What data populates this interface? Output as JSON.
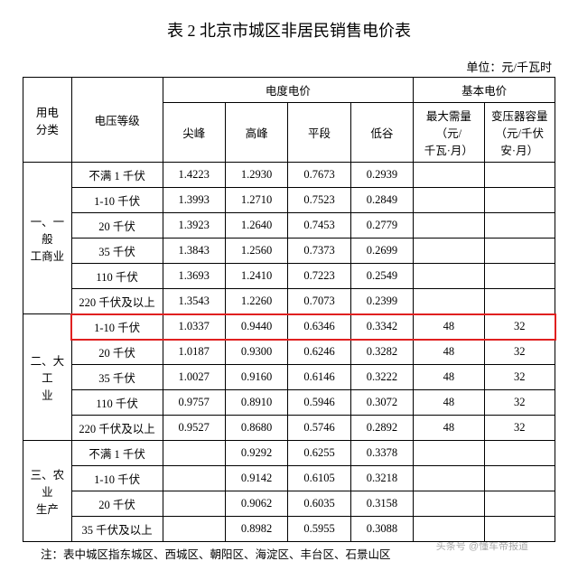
{
  "title": "表 2 北京市城区非居民销售电价表",
  "unit": "单位：元/千瓦时",
  "headers": {
    "category": "用电\n分类",
    "voltage": "电压等级",
    "energy_group": "电度电价",
    "basic_group": "基本电价",
    "peak_top": "尖峰",
    "peak_high": "高峰",
    "flat": "平段",
    "valley": "低谷",
    "max_demand": "最大需量\n（元/\n千瓦·月）",
    "transformer": "变压器容量\n（元/千伏\n安·月）"
  },
  "groups": [
    {
      "name": "一、一般\n工商业",
      "rows": [
        {
          "voltage": "不满 1 千伏",
          "p1": "1.4223",
          "p2": "1.2930",
          "p3": "0.7673",
          "p4": "0.2939",
          "d": "",
          "t": ""
        },
        {
          "voltage": "1-10 千伏",
          "p1": "1.3993",
          "p2": "1.2710",
          "p3": "0.7523",
          "p4": "0.2849",
          "d": "",
          "t": ""
        },
        {
          "voltage": "20 千伏",
          "p1": "1.3923",
          "p2": "1.2640",
          "p3": "0.7453",
          "p4": "0.2779",
          "d": "",
          "t": ""
        },
        {
          "voltage": "35 千伏",
          "p1": "1.3843",
          "p2": "1.2560",
          "p3": "0.7373",
          "p4": "0.2699",
          "d": "",
          "t": ""
        },
        {
          "voltage": "110 千伏",
          "p1": "1.3693",
          "p2": "1.2410",
          "p3": "0.7223",
          "p4": "0.2549",
          "d": "",
          "t": ""
        },
        {
          "voltage": "220 千伏及以上",
          "p1": "1.3543",
          "p2": "1.2260",
          "p3": "0.7073",
          "p4": "0.2399",
          "d": "",
          "t": ""
        }
      ]
    },
    {
      "name": "二、大工\n业",
      "rows": [
        {
          "voltage": "1-10 千伏",
          "p1": "1.0337",
          "p2": "0.9440",
          "p3": "0.6346",
          "p4": "0.3342",
          "d": "48",
          "t": "32",
          "highlight": true
        },
        {
          "voltage": "20 千伏",
          "p1": "1.0187",
          "p2": "0.9300",
          "p3": "0.6246",
          "p4": "0.3282",
          "d": "48",
          "t": "32"
        },
        {
          "voltage": "35 千伏",
          "p1": "1.0027",
          "p2": "0.9160",
          "p3": "0.6146",
          "p4": "0.3222",
          "d": "48",
          "t": "32"
        },
        {
          "voltage": "110 千伏",
          "p1": "0.9757",
          "p2": "0.8910",
          "p3": "0.5946",
          "p4": "0.3072",
          "d": "48",
          "t": "32"
        },
        {
          "voltage": "220 千伏及以上",
          "p1": "0.9527",
          "p2": "0.8680",
          "p3": "0.5746",
          "p4": "0.2892",
          "d": "48",
          "t": "32"
        }
      ]
    },
    {
      "name": "三、农业\n生产",
      "rows": [
        {
          "voltage": "不满 1 千伏",
          "p1": "",
          "p2": "0.9292",
          "p3": "0.6255",
          "p4": "0.3378",
          "d": "",
          "t": ""
        },
        {
          "voltage": "1-10 千伏",
          "p1": "",
          "p2": "0.9142",
          "p3": "0.6105",
          "p4": "0.3218",
          "d": "",
          "t": ""
        },
        {
          "voltage": "20 千伏",
          "p1": "",
          "p2": "0.9062",
          "p3": "0.6035",
          "p4": "0.3158",
          "d": "",
          "t": ""
        },
        {
          "voltage": "35 千伏及以上",
          "p1": "",
          "p2": "0.8982",
          "p3": "0.5955",
          "p4": "0.3088",
          "d": "",
          "t": ""
        }
      ]
    }
  ],
  "footnote": "注：表中城区指东城区、西城区、朝阳区、海淀区、丰台区、石景山区",
  "watermark": "头条号 @懂车帝报道",
  "style": {
    "highlight_color": "#e02020",
    "border_color": "#000000",
    "bg": "#ffffff",
    "title_fontsize": 18,
    "body_fontsize": 12.5
  }
}
